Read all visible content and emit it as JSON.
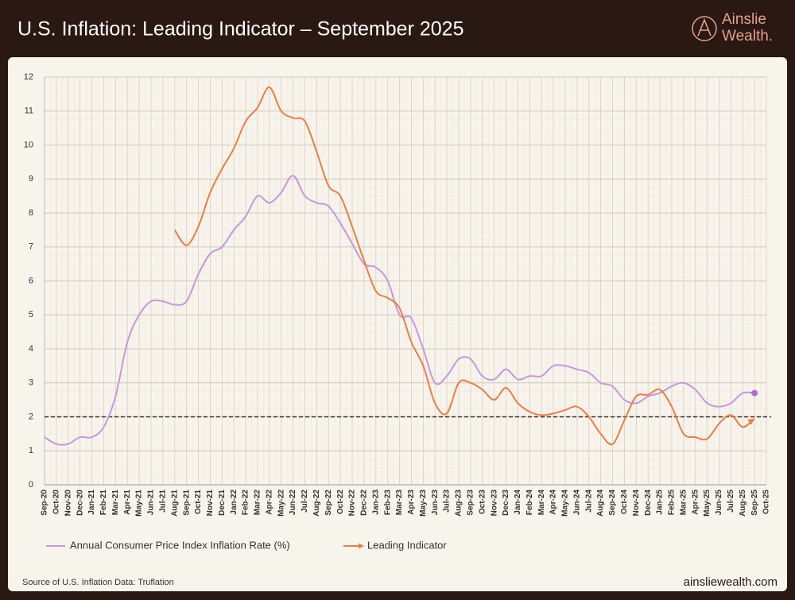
{
  "chart_data": {
    "type": "line",
    "title": "U.S. Inflation: Leading Indicator – September 2025",
    "brand": {
      "name": "Ainslie",
      "sub": "Wealth."
    },
    "footer": {
      "source": "Source of U.S. Inflation Data: Truflation",
      "url": "ainsliewealth.com"
    },
    "categories": [
      "Sep-20",
      "Oct-20",
      "Nov-20",
      "Dec-20",
      "Jan-21",
      "Feb-21",
      "Mar-21",
      "Apr-21",
      "May-21",
      "Jun-21",
      "Jul-21",
      "Aug-21",
      "Sep-21",
      "Oct-21",
      "Nov-21",
      "Dec-21",
      "Jan-22",
      "Feb-22",
      "Mar-22",
      "Apr-22",
      "May-22",
      "Jun-22",
      "Jul-22",
      "Aug-22",
      "Sep-22",
      "Oct-22",
      "Nov-22",
      "Dec-22",
      "Jan-23",
      "Feb-23",
      "Mar-23",
      "Apr-23",
      "May-23",
      "Jun-23",
      "Jul-23",
      "Aug-23",
      "Sep-23",
      "Oct-23",
      "Nov-23",
      "Dec-23",
      "Jan-24",
      "Feb-24",
      "Mar-24",
      "Apr-24",
      "May-24",
      "Jun-24",
      "Jul-24",
      "Aug-24",
      "Sep-24",
      "Oct-24",
      "Nov-24",
      "Dec-24",
      "Jan-25",
      "Feb-25",
      "Mar-25",
      "Apr-25",
      "May-25",
      "Jun-25",
      "Jul-25",
      "Aug-25",
      "Sep-25",
      "Oct-25"
    ],
    "series": [
      {
        "name": "Annual Consumer Price Index Inflation Rate (%)",
        "color": "#c896de",
        "end_marker": "dot",
        "values": [
          1.4,
          1.2,
          1.2,
          1.4,
          1.4,
          1.7,
          2.6,
          4.2,
          5.0,
          5.4,
          5.4,
          5.3,
          5.4,
          6.2,
          6.8,
          7.0,
          7.5,
          7.9,
          8.5,
          8.3,
          8.6,
          9.1,
          8.5,
          8.3,
          8.2,
          7.7,
          7.1,
          6.5,
          6.4,
          6.0,
          5.0,
          4.9,
          4.0,
          3.0,
          3.2,
          3.7,
          3.7,
          3.2,
          3.1,
          3.4,
          3.1,
          3.2,
          3.2,
          3.5,
          3.5,
          3.4,
          3.3,
          3.0,
          2.9,
          2.5,
          2.4,
          2.6,
          2.7,
          2.9,
          3.0,
          2.8,
          2.4,
          2.3,
          2.4,
          2.7,
          2.7,
          null
        ]
      },
      {
        "name": "Leading Indicator",
        "color": "#ec7d45",
        "end_marker": "arrow",
        "values": [
          null,
          null,
          null,
          null,
          null,
          null,
          null,
          null,
          null,
          null,
          null,
          7.5,
          7.05,
          7.6,
          8.6,
          9.3,
          9.9,
          10.7,
          11.1,
          11.7,
          11.0,
          10.8,
          10.7,
          9.8,
          8.8,
          8.5,
          7.6,
          6.6,
          5.7,
          5.5,
          5.2,
          4.2,
          3.5,
          2.4,
          2.1,
          3.0,
          3.0,
          2.8,
          2.5,
          2.85,
          2.4,
          2.15,
          2.05,
          2.1,
          2.2,
          2.3,
          2.0,
          1.5,
          1.2,
          1.9,
          2.6,
          2.65,
          2.8,
          2.3,
          1.5,
          1.4,
          1.35,
          1.8,
          2.05,
          1.7,
          1.95,
          null
        ]
      }
    ],
    "reference_line": 2,
    "ylim": [
      0,
      12
    ],
    "yticks": [
      0,
      1,
      2,
      3,
      4,
      5,
      6,
      7,
      8,
      9,
      10,
      11,
      12
    ],
    "grid": true
  }
}
